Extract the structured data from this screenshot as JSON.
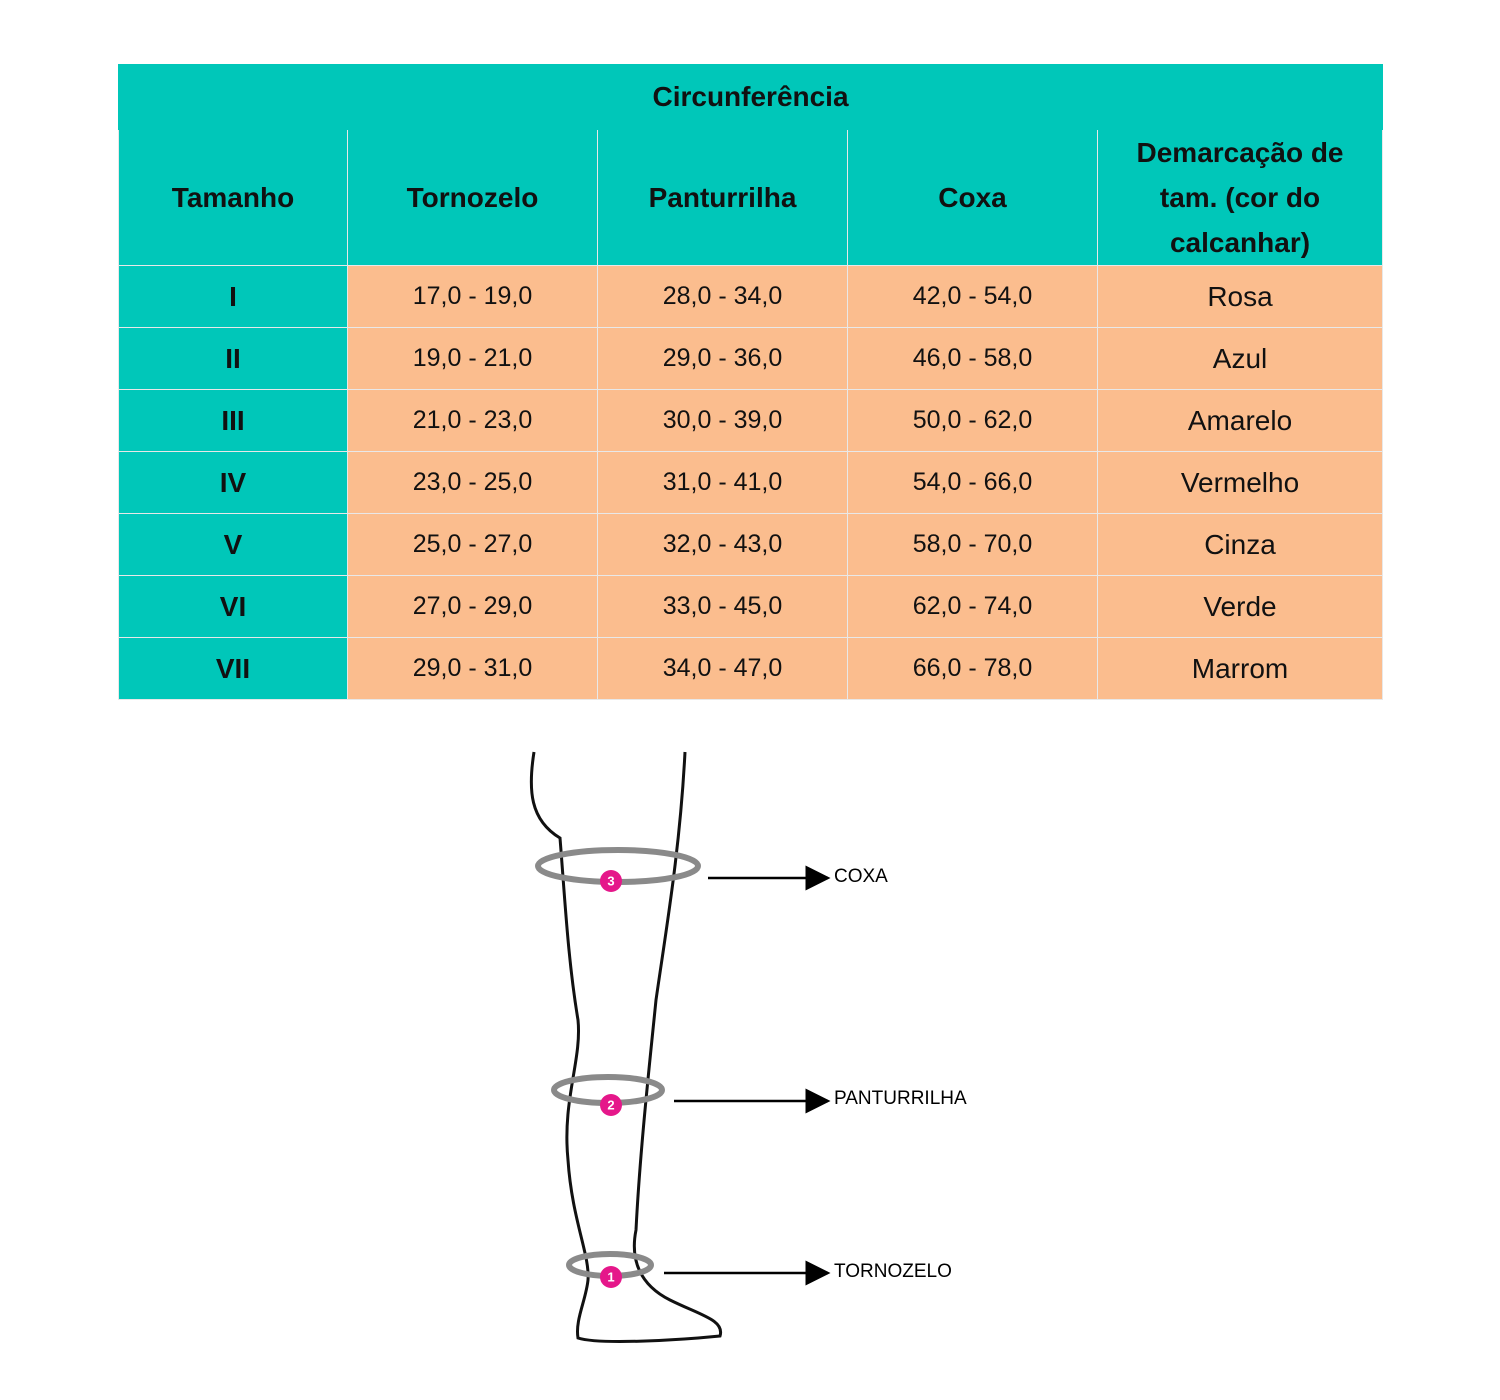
{
  "table": {
    "title": "Circunferência",
    "headers": [
      "Tamanho",
      "Tornozelo",
      "Panturrilha",
      "Coxa",
      "Demarcação de tam. (cor do calcanhar)"
    ],
    "rows": [
      [
        "I",
        "17,0 - 19,0",
        "28,0 - 34,0",
        "42,0 - 54,0",
        "Rosa"
      ],
      [
        "II",
        "19,0 - 21,0",
        "29,0 - 36,0",
        "46,0 - 58,0",
        "Azul"
      ],
      [
        "III",
        "21,0 - 23,0",
        "30,0 - 39,0",
        "50,0 - 62,0",
        "Amarelo"
      ],
      [
        "IV",
        "23,0 - 25,0",
        "31,0 - 41,0",
        "54,0 - 66,0",
        "Vermelho"
      ],
      [
        "V",
        "25,0 - 27,0",
        "32,0 - 43,0",
        "58,0 - 70,0",
        "Cinza"
      ],
      [
        "VI",
        "27,0 - 29,0",
        "33,0 - 45,0",
        "62,0 - 74,0",
        "Verde"
      ],
      [
        "VII",
        "29,0 - 31,0",
        "34,0 - 47,0",
        "66,0 - 78,0",
        "Marrom"
      ]
    ]
  },
  "diagram": {
    "labels": [
      "COXA",
      "PANTURRILHA",
      "TORNOZELO"
    ],
    "markers": [
      "3",
      "2",
      "1"
    ]
  }
}
